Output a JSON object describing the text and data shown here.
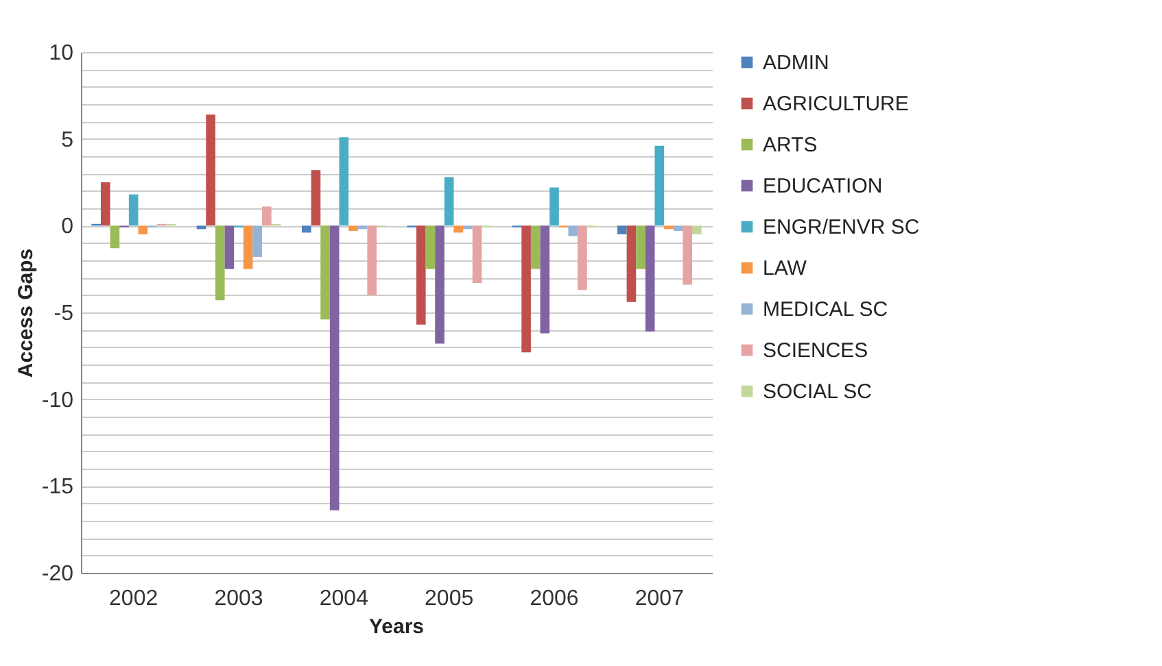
{
  "chart_data": {
    "type": "bar",
    "xlabel": "Years",
    "ylabel": "Access Gaps",
    "categories": [
      "2002",
      "2003",
      "2004",
      "2005",
      "2006",
      "2007"
    ],
    "series": [
      {
        "name": "ADMIN",
        "color": "#4f81bd",
        "values": [
          0.1,
          -0.2,
          -0.4,
          -0.1,
          -0.1,
          -0.5
        ]
      },
      {
        "name": "AGRICULTURE",
        "color": "#c0504d",
        "values": [
          2.5,
          6.4,
          3.2,
          -5.7,
          -7.3,
          -4.4
        ]
      },
      {
        "name": "ARTS",
        "color": "#9bbb59",
        "values": [
          -1.3,
          -4.3,
          -5.4,
          -2.5,
          -2.5,
          -2.5
        ]
      },
      {
        "name": "EDUCATION",
        "color": "#8064a2",
        "values": [
          -0.1,
          -2.5,
          -16.4,
          -6.8,
          -6.2,
          -6.1
        ]
      },
      {
        "name": "ENGR/ENVR SC",
        "color": "#4bacc6",
        "values": [
          1.8,
          -0.1,
          5.1,
          2.8,
          2.2,
          4.6
        ]
      },
      {
        "name": "LAW",
        "color": "#f79646",
        "values": [
          -0.5,
          -2.5,
          -0.3,
          -0.4,
          -0.1,
          -0.2
        ]
      },
      {
        "name": "MEDICAL SC",
        "color": "#95b3d7",
        "values": [
          -0.1,
          -1.8,
          -0.2,
          -0.2,
          -0.6,
          -0.3
        ]
      },
      {
        "name": "SCIENCES",
        "color": "#e6a3a3",
        "values": [
          0.1,
          1.1,
          -4.0,
          -3.3,
          -3.7,
          -3.4
        ]
      },
      {
        "name": "SOCIAL SC",
        "color": "#c3d69b",
        "values": [
          0.1,
          0.1,
          -0.1,
          -0.1,
          -0.1,
          -0.5
        ]
      }
    ],
    "ylim": [
      -20,
      10
    ],
    "yticks": [
      -20,
      {
        "value": -19,
        "label": null
      },
      {
        "value": -18,
        "label": null
      },
      {
        "value": -17,
        "label": null
      },
      {
        "value": -16,
        "label": null
      },
      -15,
      {
        "value": -14,
        "label": null
      },
      {
        "value": -13,
        "label": null
      },
      {
        "value": -12,
        "label": null
      },
      {
        "value": -11,
        "label": null
      },
      -10,
      {
        "value": -9,
        "label": null
      },
      {
        "value": -8,
        "label": null
      },
      {
        "value": -7,
        "label": null
      },
      {
        "value": -6,
        "label": null
      },
      -5,
      {
        "value": -4,
        "label": null
      },
      {
        "value": -3,
        "label": null
      },
      {
        "value": -2,
        "label": null
      },
      {
        "value": -1,
        "label": null
      },
      0,
      {
        "value": 1,
        "label": null
      },
      {
        "value": 2,
        "label": null
      },
      {
        "value": 3,
        "label": null
      },
      {
        "value": 4,
        "label": null
      },
      5,
      {
        "value": 6,
        "label": null
      },
      {
        "value": 7,
        "label": null
      },
      {
        "value": 8,
        "label": null
      },
      {
        "value": 9,
        "label": null
      },
      10
    ],
    "grid": true,
    "legend": "right"
  }
}
